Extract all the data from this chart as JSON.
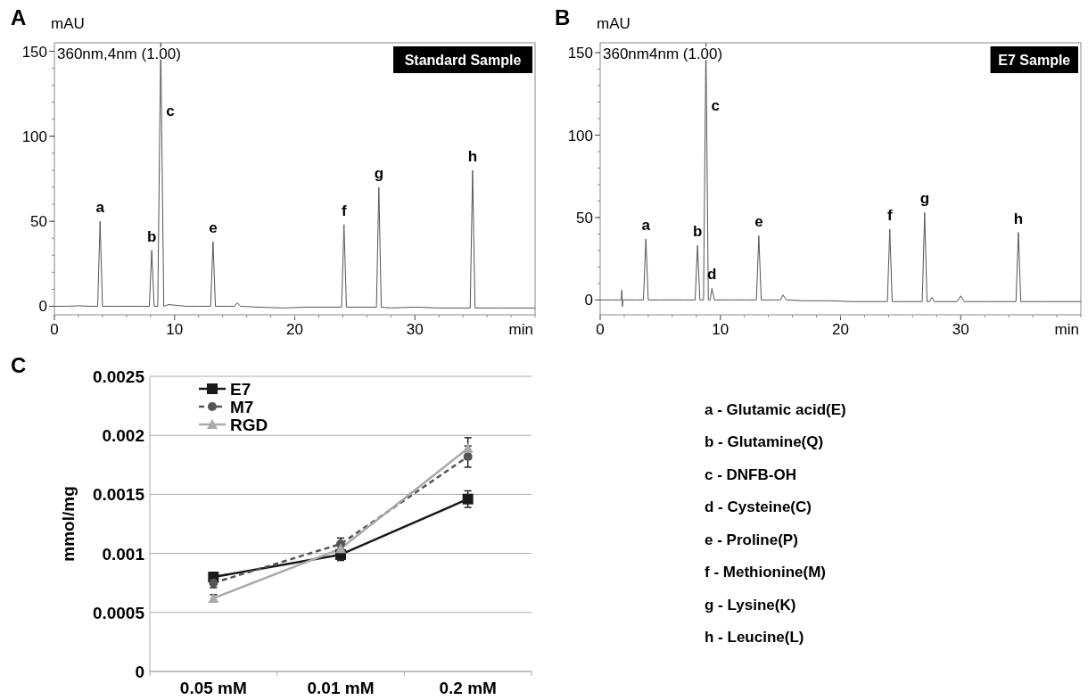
{
  "chart_data": [
    {
      "type": "line",
      "title": "Standard Sample",
      "subtitle": "360nm,4nm (1.00)",
      "xlabel": "min",
      "ylabel": "mAU",
      "xlim": [
        0,
        40
      ],
      "ylim": [
        -5,
        155
      ],
      "xticks": [
        0,
        10,
        20,
        30
      ],
      "yticks": [
        0,
        50,
        100,
        150
      ],
      "grid": false,
      "annotations": [
        "A",
        {
          "text": "a",
          "x": 3.8,
          "y": 50
        },
        {
          "text": "b",
          "x": 8.1,
          "y": 33
        },
        {
          "text": "c",
          "x": 8.85,
          "y": 115
        },
        {
          "text": "e",
          "x": 13.2,
          "y": 38
        },
        {
          "text": "f",
          "x": 24.1,
          "y": 48
        },
        {
          "text": "g",
          "x": 27,
          "y": 70
        },
        {
          "text": "h",
          "x": 34.8,
          "y": 80
        }
      ],
      "series": [
        {
          "color": "#555555",
          "x": [
            0,
            1,
            2,
            3,
            3.6,
            3.8,
            4.0,
            5,
            7,
            7.9,
            8.1,
            8.3,
            8.6,
            8.85,
            9.1,
            9.5,
            11,
            12,
            13.0,
            13.2,
            13.4,
            14.5,
            15.0,
            15.2,
            15.5,
            17,
            19,
            21,
            23.9,
            24.1,
            24.3,
            25,
            26.5,
            26.8,
            27.0,
            27.2,
            28,
            30,
            32,
            34.6,
            34.8,
            35.0,
            37,
            40
          ],
          "values": [
            0,
            0,
            0.3,
            0,
            0,
            50,
            0,
            0,
            0,
            0,
            33,
            0,
            0,
            155,
            0,
            1,
            0,
            0,
            0,
            38,
            0,
            0,
            0,
            2,
            0,
            -0.5,
            -1,
            -0.5,
            -0.5,
            48,
            -0.5,
            -0.5,
            -0.5,
            -0.5,
            70,
            -0.5,
            -1,
            -0.5,
            -1,
            -1,
            80,
            -1,
            -1,
            -1
          ]
        }
      ]
    },
    {
      "type": "line",
      "title": "E7 Sample",
      "subtitle": "360nm4nm (1.00)",
      "xlabel": "min",
      "ylabel": "mAU",
      "xlim": [
        0,
        40
      ],
      "ylim": [
        -9,
        156
      ],
      "xticks": [
        0,
        10,
        20,
        30
      ],
      "yticks": [
        0,
        50,
        100,
        150
      ],
      "grid": false,
      "annotations": [
        "B",
        {
          "text": "a",
          "x": 3.8,
          "y": 37
        },
        {
          "text": "b",
          "x": 8.1,
          "y": 33
        },
        {
          "text": "c",
          "x": 8.8,
          "y": 118
        },
        {
          "text": "d",
          "x": 9.3,
          "y": 7
        },
        {
          "text": "e",
          "x": 13.2,
          "y": 39
        },
        {
          "text": "f",
          "x": 24.1,
          "y": 43
        },
        {
          "text": "g",
          "x": 27,
          "y": 53
        },
        {
          "text": "h",
          "x": 34.8,
          "y": 41
        }
      ],
      "series": [
        {
          "color": "#555555",
          "x": [
            0,
            1,
            1.75,
            1.8,
            1.85,
            1.9,
            3,
            3.6,
            3.8,
            4.0,
            5,
            7,
            7.9,
            8.1,
            8.3,
            8.6,
            8.8,
            9.0,
            9.15,
            9.3,
            9.5,
            11,
            12,
            13.0,
            13.2,
            13.4,
            14.5,
            15.0,
            15.2,
            15.5,
            17,
            19,
            21,
            23.9,
            24.1,
            24.3,
            25,
            26.8,
            27.0,
            27.2,
            27.4,
            27.6,
            27.8,
            29.7,
            30.0,
            30.3,
            32,
            34.6,
            34.8,
            35.0,
            37,
            40
          ],
          "values": [
            0,
            0,
            0,
            6,
            -4,
            0,
            0,
            0,
            37,
            0,
            0,
            0,
            0,
            33,
            0,
            0,
            156,
            0,
            0,
            7,
            0,
            0,
            0,
            0,
            39,
            0,
            0,
            0,
            3,
            0,
            -0.5,
            -0.5,
            -1,
            -1,
            43,
            -1,
            -1,
            -1,
            53,
            -1,
            -1,
            1.5,
            -1,
            -1,
            2.5,
            -1,
            -1,
            -1,
            41,
            -1,
            -1,
            -1
          ]
        }
      ]
    },
    {
      "type": "line",
      "ylabel": "mmol/mg",
      "categories": [
        "0.05 mM",
        "0.01 mM",
        "0.2 mM"
      ],
      "ylim": [
        0,
        0.0025
      ],
      "yticks": [
        0,
        0.0005,
        0.001,
        0.0015,
        0.002,
        0.0025
      ],
      "grid": "y",
      "legend": "top left",
      "annotations": [
        "C"
      ],
      "series": [
        {
          "name": "E7",
          "color": "#1a1a1a",
          "marker": "square",
          "line_style": "solid",
          "values": [
            0.0008,
            0.00099,
            0.00146
          ],
          "errors": [
            4e-05,
            5e-05,
            7e-05
          ]
        },
        {
          "name": "M7",
          "color": "#555555",
          "marker": "circle",
          "line_style": "dashed",
          "values": [
            0.00075,
            0.00108,
            0.00182
          ],
          "errors": [
            4e-05,
            5e-05,
            9e-05
          ]
        },
        {
          "name": "RGD",
          "color": "#aaaaaa",
          "marker": "triangle",
          "line_style": "solid",
          "values": [
            0.00062,
            0.00104,
            0.00189
          ],
          "errors": [
            3e-05,
            null,
            9e-05
          ]
        }
      ]
    },
    {
      "type": "other",
      "annotations": [
        "a - Glutamic acid(E)",
        "b - Glutamine(Q)",
        "c - DNFB-OH",
        "d - Cysteine(C)",
        "e - Proline(P)",
        "f - Methionine(M)",
        "g - Lysine(K)",
        "h - Leucine(L)"
      ]
    }
  ]
}
